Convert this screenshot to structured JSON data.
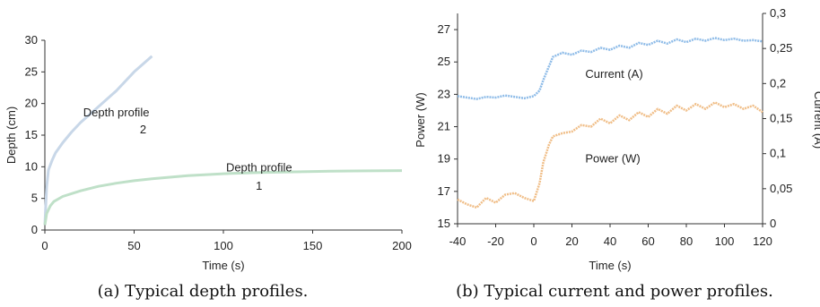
{
  "chart_data": [
    {
      "type": "line",
      "panel_label": "(a)",
      "caption": "(a) Typical depth profiles.",
      "xlabel": "Time (s)",
      "ylabel": "Depth (cm)",
      "xlim": [
        0,
        200
      ],
      "ylim": [
        0,
        30
      ],
      "xticks": [
        "0",
        "50",
        "100",
        "150",
        "200"
      ],
      "yticks": [
        "0",
        "5",
        "10",
        "15",
        "20",
        "25",
        "30"
      ],
      "grid": false,
      "annotations": [
        {
          "text": "Depth profile",
          "x": 40,
          "y": 18
        },
        {
          "text": "2",
          "x": 55,
          "y": 15.3
        },
        {
          "text": "Depth profile",
          "x": 120,
          "y": 9.3
        },
        {
          "text": "1",
          "x": 120,
          "y": 6.4
        }
      ],
      "series": [
        {
          "color": "#c8d7e8",
          "x": [
            0,
            1,
            2,
            4,
            6,
            10,
            15,
            20,
            30,
            40,
            50,
            60
          ],
          "y": [
            0.8,
            6.8,
            9.5,
            11,
            12.2,
            13.8,
            15.5,
            17,
            19.5,
            22,
            25,
            27.5
          ]
        },
        {
          "color": "#bfe0c8",
          "x": [
            0,
            1,
            3,
            5,
            10,
            20,
            30,
            40,
            50,
            60,
            80,
            100,
            120,
            140,
            160,
            180,
            200
          ],
          "y": [
            0.8,
            2.6,
            3.8,
            4.5,
            5.3,
            6.2,
            6.9,
            7.4,
            7.8,
            8.1,
            8.6,
            8.9,
            9.1,
            9.2,
            9.3,
            9.35,
            9.4
          ]
        }
      ]
    },
    {
      "type": "line",
      "panel_label": "(b)",
      "caption": "(b) Typical current and power profiles.",
      "xlabel": "Time (s)",
      "ylabel": "Power (W)",
      "y2label": "Current (A)",
      "xlim": [
        -40,
        120
      ],
      "ylim": [
        15,
        28
      ],
      "y2lim": [
        0,
        0.3
      ],
      "xticks": [
        "-40",
        "-20",
        "0",
        "20",
        "40",
        "60",
        "80",
        "100",
        "120"
      ],
      "yticks": [
        "15",
        "17",
        "19",
        "21",
        "23",
        "25",
        "27"
      ],
      "y2ticks": [
        "0",
        "0,05",
        "0,1",
        "0,15",
        "0,2",
        "0,25",
        "0,3"
      ],
      "grid": false,
      "annotations": [
        {
          "text": "Current (A)",
          "x": 27,
          "y2": 0.208
        },
        {
          "text": "Power (W)",
          "x": 27,
          "y": 18.8
        }
      ],
      "series": [
        {
          "name": "Current (A)",
          "axis": "right",
          "color": "#8fbce8",
          "x": [
            -40,
            -35,
            -30,
            -25,
            -20,
            -15,
            -10,
            -5,
            0,
            3,
            5,
            8,
            10,
            15,
            20,
            25,
            30,
            35,
            40,
            45,
            50,
            55,
            60,
            65,
            70,
            75,
            80,
            85,
            90,
            95,
            100,
            105,
            110,
            115,
            120
          ],
          "y": [
            0.182,
            0.18,
            0.178,
            0.181,
            0.18,
            0.183,
            0.181,
            0.179,
            0.182,
            0.19,
            0.205,
            0.225,
            0.238,
            0.244,
            0.241,
            0.247,
            0.245,
            0.251,
            0.248,
            0.254,
            0.251,
            0.258,
            0.255,
            0.261,
            0.257,
            0.263,
            0.259,
            0.264,
            0.261,
            0.265,
            0.262,
            0.264,
            0.261,
            0.262,
            0.26
          ]
        },
        {
          "name": "Power (W)",
          "axis": "left",
          "color": "#f0be88",
          "x": [
            -40,
            -35,
            -30,
            -25,
            -20,
            -15,
            -10,
            -5,
            0,
            3,
            5,
            8,
            10,
            15,
            20,
            25,
            30,
            35,
            40,
            45,
            50,
            55,
            60,
            65,
            70,
            75,
            80,
            85,
            90,
            95,
            100,
            105,
            110,
            115,
            120
          ],
          "y": [
            16.5,
            16.2,
            16.0,
            16.6,
            16.3,
            16.8,
            16.9,
            16.6,
            16.4,
            17.5,
            18.8,
            19.9,
            20.4,
            20.6,
            20.7,
            21.1,
            21.0,
            21.5,
            21.2,
            21.7,
            21.4,
            21.9,
            21.6,
            22.1,
            21.8,
            22.3,
            22.0,
            22.4,
            22.1,
            22.5,
            22.2,
            22.4,
            22.1,
            22.3,
            21.9
          ]
        }
      ]
    }
  ]
}
